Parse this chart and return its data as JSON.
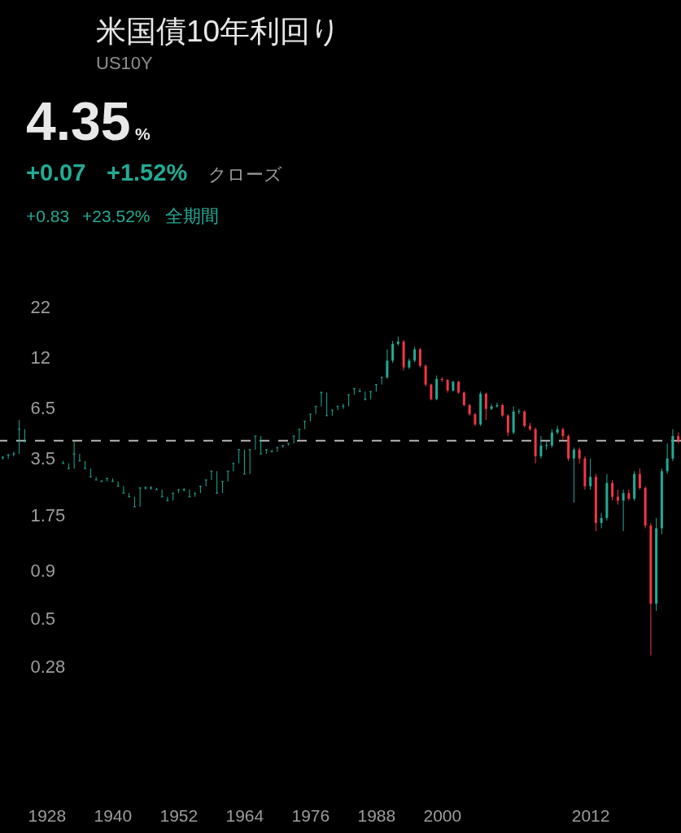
{
  "chart_data": {
    "type": "candlestick",
    "title": "米国債10年利回り",
    "subtitle": "US10Y",
    "annotations": [
      "4.35",
      "%",
      "+0.07",
      "+1.52%",
      "クローズ",
      "+0.83",
      "+23.52%",
      "全期間"
    ],
    "categories": [
      null,
      null,
      null,
      null,
      null,
      null,
      null,
      null,
      "1928",
      null,
      null,
      null,
      null,
      null,
      null,
      null,
      null,
      null,
      null,
      null,
      "1940",
      null,
      null,
      null,
      null,
      null,
      null,
      null,
      null,
      null,
      null,
      null,
      "1952",
      null,
      null,
      null,
      null,
      null,
      null,
      null,
      null,
      null,
      null,
      null,
      "1964",
      null,
      null,
      null,
      null,
      null,
      null,
      null,
      null,
      null,
      null,
      null,
      "1976",
      null,
      null,
      null,
      null,
      null,
      null,
      null,
      null,
      null,
      null,
      null,
      "1988",
      null,
      null,
      null,
      null,
      null,
      null,
      null,
      null,
      null,
      null,
      null,
      "2000",
      null,
      null,
      null,
      null,
      null,
      null,
      null,
      null,
      null,
      null,
      null,
      null,
      null,
      null,
      null,
      null,
      null,
      null,
      null,
      null,
      null,
      null,
      null,
      null,
      null,
      null,
      "2012",
      null,
      null,
      null,
      null,
      null,
      null,
      null,
      null,
      null,
      null,
      null,
      null,
      null,
      null,
      null,
      null
    ],
    "ohlc": [
      [
        3.55,
        3.6,
        3.45,
        3.55
      ],
      [
        3.65,
        3.7,
        3.5,
        3.65
      ],
      [
        3.7,
        3.8,
        3.6,
        3.7
      ],
      [
        5.0,
        5.6,
        3.7,
        5.0
      ],
      [
        4.3,
        5.0,
        4.3,
        4.3
      ],
      null,
      null,
      null,
      null,
      null,
      null,
      [
        3.3,
        3.4,
        3.3,
        3.3
      ],
      [
        3.1,
        3.3,
        3.1,
        3.1
      ],
      [
        3.7,
        4.3,
        3.1,
        3.7
      ],
      [
        3.4,
        3.7,
        3.4,
        3.4
      ],
      [
        3.1,
        3.4,
        3.1,
        3.1
      ],
      [
        2.8,
        3.1,
        2.8,
        2.8
      ],
      [
        2.7,
        2.8,
        2.7,
        2.7
      ],
      [
        2.65,
        2.7,
        2.65,
        2.65
      ],
      [
        2.75,
        2.75,
        2.65,
        2.75
      ],
      [
        2.65,
        2.75,
        2.65,
        2.65
      ],
      [
        2.5,
        2.65,
        2.5,
        2.5
      ],
      [
        2.3,
        2.5,
        2.3,
        2.3
      ],
      [
        2.2,
        2.3,
        2.2,
        2.2
      ],
      [
        1.95,
        2.2,
        1.95,
        1.95
      ],
      [
        2.45,
        2.45,
        1.95,
        2.45
      ],
      [
        2.45,
        2.5,
        2.4,
        2.45
      ],
      [
        2.45,
        2.5,
        2.4,
        2.45
      ],
      [
        2.4,
        2.45,
        2.4,
        2.4
      ],
      [
        2.2,
        2.4,
        2.2,
        2.2
      ],
      [
        2.1,
        2.2,
        2.1,
        2.1
      ],
      [
        2.3,
        2.3,
        2.1,
        2.3
      ],
      [
        2.4,
        2.4,
        2.3,
        2.4
      ],
      [
        2.4,
        2.45,
        2.35,
        2.4
      ],
      [
        2.2,
        2.4,
        2.2,
        2.2
      ],
      [
        2.3,
        2.3,
        2.2,
        2.3
      ],
      [
        2.5,
        2.5,
        2.3,
        2.5
      ],
      [
        2.7,
        2.7,
        2.5,
        2.7
      ],
      [
        3.0,
        3.0,
        2.7,
        3.0
      ],
      [
        2.3,
        3.0,
        2.3,
        2.3
      ],
      [
        2.65,
        2.65,
        2.3,
        2.65
      ],
      [
        3.0,
        3.0,
        2.65,
        3.0
      ],
      [
        3.3,
        3.3,
        3.0,
        3.3
      ],
      [
        3.9,
        3.9,
        3.3,
        3.9
      ],
      [
        2.9,
        3.9,
        2.9,
        2.9
      ],
      [
        3.9,
        3.9,
        2.9,
        3.9
      ],
      [
        4.6,
        4.6,
        3.9,
        4.6
      ],
      [
        3.7,
        4.6,
        3.7,
        3.7
      ],
      [
        3.9,
        3.9,
        3.7,
        3.9
      ],
      [
        3.8,
        3.9,
        3.8,
        3.8
      ],
      [
        4.0,
        4.0,
        3.8,
        4.0
      ],
      [
        4.1,
        4.1,
        4.0,
        4.1
      ],
      [
        4.2,
        4.2,
        4.1,
        4.2
      ],
      [
        4.6,
        4.6,
        4.2,
        4.6
      ],
      [
        5.0,
        5.0,
        4.4,
        5.0
      ],
      [
        5.5,
        5.5,
        5.0,
        5.5
      ],
      [
        6.0,
        6.0,
        5.5,
        6.0
      ],
      [
        6.6,
        6.6,
        6.0,
        6.6
      ],
      [
        7.8,
        7.9,
        6.6,
        7.8
      ],
      [
        5.9,
        7.8,
        5.9,
        5.9
      ],
      [
        6.3,
        6.3,
        5.9,
        6.3
      ],
      [
        6.6,
        6.6,
        6.3,
        6.6
      ],
      [
        6.6,
        6.8,
        6.4,
        6.6
      ],
      [
        7.6,
        7.6,
        6.6,
        7.6
      ],
      [
        8.2,
        8.2,
        7.6,
        8.2
      ],
      [
        7.9,
        8.2,
        7.9,
        7.9
      ],
      [
        7.2,
        7.9,
        7.1,
        7.2
      ],
      [
        7.9,
        7.9,
        7.2,
        7.9
      ],
      [
        8.6,
        8.6,
        7.9,
        8.6
      ],
      [
        9.4,
        9.4,
        8.6,
        9.4
      ],
      [
        9.4,
        13.2,
        9.2,
        11.5
      ],
      [
        11.5,
        14.6,
        11.2,
        14.1
      ],
      [
        14.1,
        15.4,
        13.8,
        14.5
      ],
      [
        14.5,
        14.8,
        10.2,
        10.6
      ],
      [
        10.6,
        11.8,
        10.4,
        11.5
      ],
      [
        11.5,
        13.6,
        11.3,
        13.2
      ],
      [
        13.2,
        13.4,
        10.6,
        10.8
      ],
      [
        10.8,
        11.0,
        8.4,
        8.6
      ],
      [
        8.6,
        8.7,
        7.1,
        7.2
      ],
      [
        7.2,
        9.6,
        7.1,
        9.2
      ],
      [
        9.2,
        9.4,
        8.9,
        9.1
      ],
      [
        9.1,
        9.2,
        7.8,
        8.0
      ],
      [
        8.0,
        9.0,
        7.9,
        8.9
      ],
      [
        8.9,
        9.0,
        7.7,
        7.8
      ],
      [
        7.8,
        7.9,
        6.6,
        6.7
      ],
      [
        6.7,
        6.8,
        5.9,
        6.0
      ],
      [
        6.0,
        6.1,
        5.2,
        5.3
      ],
      [
        5.3,
        7.9,
        5.2,
        7.7
      ],
      [
        7.7,
        7.8,
        5.6,
        6.4
      ],
      [
        6.4,
        6.8,
        6.3,
        6.6
      ],
      [
        6.6,
        6.9,
        6.5,
        6.7
      ],
      [
        6.7,
        6.8,
        5.8,
        5.9
      ],
      [
        5.9,
        6.0,
        4.6,
        4.8
      ],
      [
        4.8,
        6.6,
        4.7,
        6.2
      ],
      [
        6.2,
        6.4,
        6.0,
        6.2
      ],
      [
        6.2,
        6.3,
        5.1,
        5.2
      ],
      [
        5.2,
        5.4,
        4.9,
        5.0
      ],
      [
        5.0,
        5.1,
        3.3,
        3.6
      ],
      [
        3.6,
        4.6,
        3.5,
        4.1
      ],
      [
        4.1,
        4.3,
        3.9,
        4.1
      ],
      [
        4.1,
        5.0,
        4.0,
        4.8
      ],
      [
        4.8,
        5.2,
        4.7,
        5.0
      ],
      [
        5.0,
        5.1,
        4.4,
        4.6
      ],
      [
        4.6,
        4.7,
        3.4,
        3.5
      ],
      [
        3.5,
        4.0,
        2.05,
        3.9
      ],
      [
        3.9,
        4.0,
        3.3,
        3.5
      ],
      [
        3.5,
        3.6,
        2.4,
        2.5
      ],
      [
        2.5,
        3.5,
        2.4,
        2.8
      ],
      [
        2.8,
        2.9,
        1.45,
        1.6
      ],
      [
        1.6,
        1.8,
        1.5,
        1.7
      ],
      [
        1.7,
        2.9,
        1.65,
        2.6
      ],
      [
        2.6,
        2.7,
        2.1,
        2.2
      ],
      [
        2.2,
        2.4,
        2.0,
        2.1
      ],
      [
        2.1,
        2.4,
        1.45,
        2.3
      ],
      [
        2.3,
        2.4,
        2.1,
        2.15
      ],
      [
        2.15,
        3.0,
        2.1,
        2.9
      ],
      [
        2.9,
        3.1,
        2.4,
        2.45
      ],
      [
        2.45,
        2.5,
        1.5,
        1.55
      ],
      [
        1.55,
        1.6,
        0.32,
        0.6
      ],
      [
        0.6,
        1.7,
        0.55,
        1.5
      ],
      [
        1.5,
        3.1,
        1.4,
        3.0
      ],
      [
        3.0,
        4.2,
        2.9,
        3.5
      ],
      [
        3.5,
        5.0,
        3.4,
        4.6
      ],
      [
        4.6,
        4.8,
        4.2,
        4.35
      ]
    ],
    "colors": [
      "#22ab94",
      "#22ab94",
      "#22ab94",
      "#22ab94",
      "#22ab94",
      null,
      null,
      null,
      null,
      null,
      null,
      "#22ab94",
      "#22ab94",
      "#22ab94",
      "#22ab94",
      "#22ab94",
      "#22ab94",
      "#22ab94",
      "#22ab94",
      "#22ab94",
      "#22ab94",
      "#22ab94",
      "#22ab94",
      "#22ab94",
      "#22ab94",
      "#22ab94",
      "#22ab94",
      "#22ab94",
      "#22ab94",
      "#22ab94",
      "#22ab94",
      "#22ab94",
      "#22ab94",
      "#22ab94",
      "#22ab94",
      "#22ab94",
      "#22ab94",
      "#22ab94",
      "#22ab94",
      "#22ab94",
      "#22ab94",
      "#22ab94",
      "#22ab94",
      "#22ab94",
      "#22ab94",
      "#22ab94",
      "#22ab94",
      "#22ab94",
      "#22ab94",
      "#22ab94",
      "#22ab94",
      "#22ab94",
      "#22ab94",
      "#22ab94",
      "#22ab94",
      "#22ab94",
      "#22ab94",
      "#22ab94",
      "#22ab94",
      "#22ab94",
      "#22ab94",
      "#22ab94",
      "#22ab94",
      "#22ab94",
      "#22ab94",
      "#22ab94",
      "#22ab94",
      "#22ab94",
      "#22ab94",
      "#22ab94",
      "#22ab94",
      "#22ab94",
      "#22ab94",
      "#f23645",
      "#22ab94",
      "#22ab94",
      "#f23645",
      "#f23645",
      "#f23645",
      "#22ab94",
      "#f23645",
      "#f23645",
      "#22ab94",
      "#f23645",
      "#f23645",
      "#f23645",
      "#f23645",
      "#22ab94",
      "#f23645",
      "#22ab94",
      "#22ab94",
      "#f23645",
      "#f23645",
      "#22ab94",
      "#22ab94",
      "#f23645",
      "#f23645",
      "#f23645",
      "#22ab94",
      "#22ab94",
      "#22ab94",
      "#22ab94",
      "#f23645",
      "#f23645",
      "#22ab94",
      "#f23645",
      "#f23645",
      "#22ab94",
      "#f23645",
      "#22ab94",
      "#22ab94",
      "#f23645",
      "#f23645",
      "#22ab94",
      "#f23645",
      "#22ab94",
      "#f23645",
      "#f23645",
      "#f23645",
      "#22ab94",
      "#22ab94",
      "#22ab94",
      "#22ab94",
      "#f23645"
    ],
    "log": true,
    "ylim": [
      0.037,
      920
    ],
    "yticks": [
      22,
      12,
      6.5,
      3.5,
      1.75,
      0.9,
      0.5,
      0.28
    ],
    "ref_lines": [
      {
        "axis": "y",
        "value": 4.35,
        "color": "#b5b5b5",
        "line_style": "dashed"
      }
    ]
  }
}
